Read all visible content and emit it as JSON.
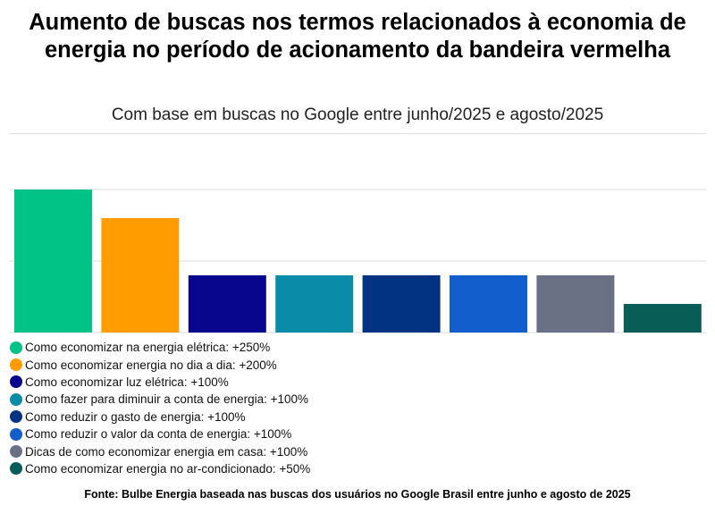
{
  "title": "Aumento de buscas nos termos relacionados à economia de energia no período de acionamento da bandeira vermelha",
  "subtitle": "Com base em buscas no Google entre junho/2025 e agosto/2025",
  "footer": "Fonte: Bulbe Energia baseada nas buscas dos usuários no Google Brasil entre junho e agosto de 2025",
  "chart_data": {
    "type": "bar",
    "ylim": [
      0,
      250
    ],
    "grid": true,
    "gridlines": [
      0,
      125,
      250
    ],
    "legend_placement": "bottom",
    "unit": "%",
    "categories": [
      "Como economizar na energia elétrica",
      "Como economizar energia no dia a dia",
      "Como economizar luz elétrica",
      "Como fazer para diminuir a conta de energia",
      "Como reduzir o gasto de energia",
      "Como reduzir o valor da conta de energia",
      "Dicas de como economizar energia em casa",
      "Como economizar energia no ar-condicionado"
    ],
    "values": [
      250,
      200,
      100,
      100,
      100,
      100,
      100,
      50
    ],
    "legend_labels": [
      "Como economizar na energia elétrica: +250%",
      "Como economizar energia no dia a dia: +200%",
      "Como economizar luz elétrica: +100%",
      "Como fazer para diminuir a conta de energia: +100%",
      "Como reduzir o gasto de energia: +100%",
      "Como reduzir o valor da conta de energia: +100%",
      "Dicas de como economizar energia em casa: +100%",
      "Como economizar energia no ar-condicionado: +50%"
    ],
    "colors": [
      "#00C385",
      "#FF9D00",
      "#08068D",
      "#0A8BA8",
      "#023382",
      "#115ECC",
      "#6A7185",
      "#085E57"
    ]
  }
}
